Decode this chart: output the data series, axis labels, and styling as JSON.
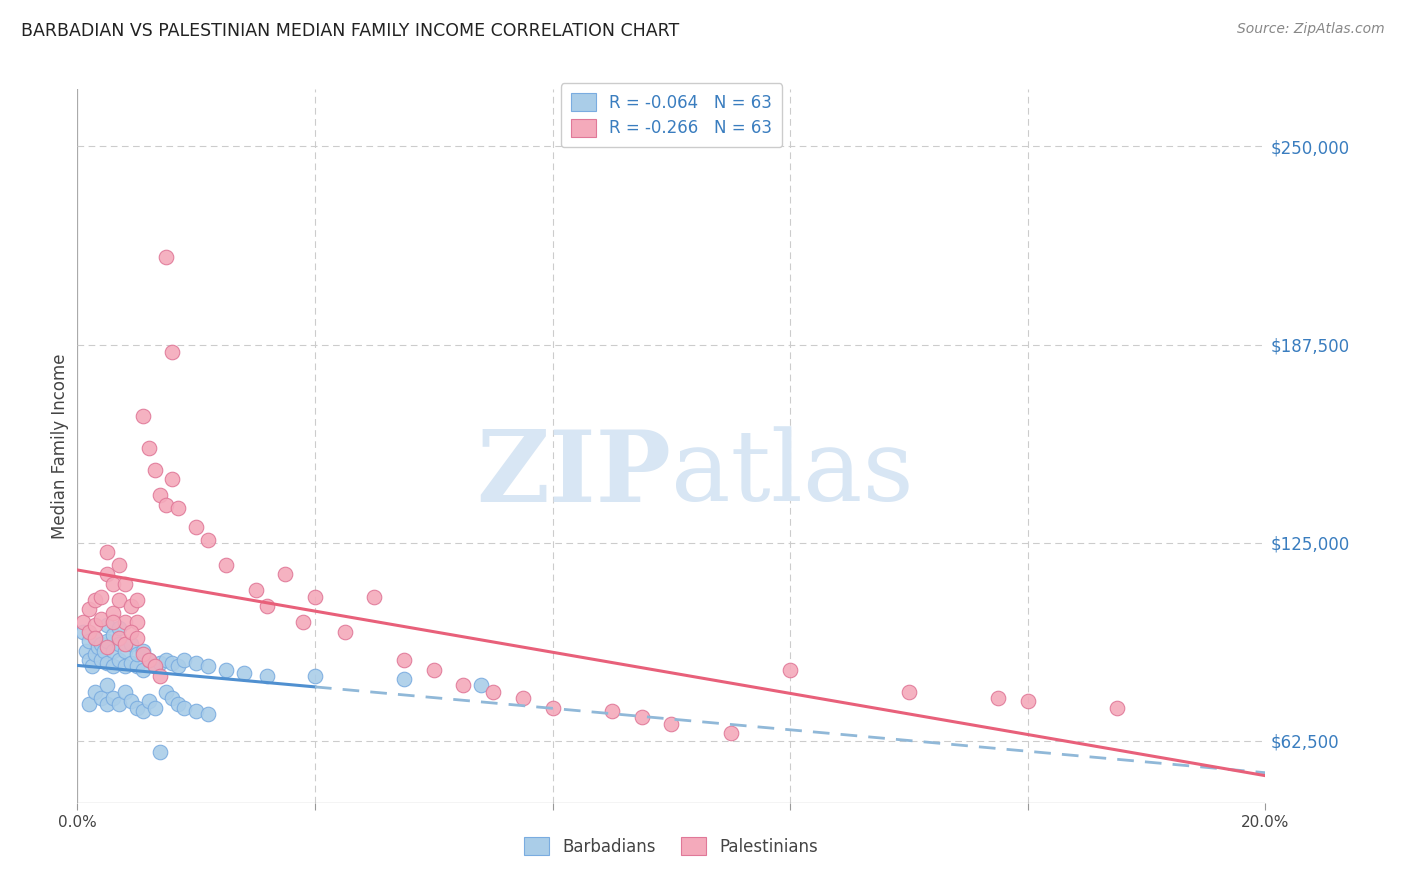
{
  "title": "BARBADIAN VS PALESTINIAN MEDIAN FAMILY INCOME CORRELATION CHART",
  "source": "Source: ZipAtlas.com",
  "ylabel": "Median Family Income",
  "y_ticks": [
    62500,
    125000,
    187500,
    250000
  ],
  "y_tick_labels": [
    "$62,500",
    "$125,000",
    "$187,500",
    "$250,000"
  ],
  "xlim": [
    0.0,
    0.2
  ],
  "ylim": [
    43000,
    268000
  ],
  "legend_entries": [
    {
      "label": "R = -0.064   N = 63",
      "color": "#aecbee"
    },
    {
      "label": "R = -0.266   N = 63",
      "color": "#f4aabb"
    }
  ],
  "legend_text_color": "#3a7dbf",
  "barbadian_color": "#aacde8",
  "palestinian_color": "#f4aabb",
  "barbadian_edge": "#7aace0",
  "palestinian_edge": "#e07898",
  "trend_barbadian_color": "#5090d0",
  "trend_palestinian_color": "#e8607a",
  "trend_dashed_color": "#90b8d8",
  "watermark_color": "#d8e6f4",
  "background_color": "#ffffff",
  "barbadian_x": [
    0.001,
    0.0015,
    0.002,
    0.002,
    0.0025,
    0.003,
    0.003,
    0.0035,
    0.004,
    0.004,
    0.0045,
    0.005,
    0.005,
    0.005,
    0.006,
    0.006,
    0.006,
    0.007,
    0.007,
    0.007,
    0.008,
    0.008,
    0.009,
    0.009,
    0.01,
    0.01,
    0.011,
    0.011,
    0.012,
    0.013,
    0.014,
    0.015,
    0.016,
    0.017,
    0.018,
    0.02,
    0.022,
    0.025,
    0.028,
    0.032,
    0.002,
    0.003,
    0.004,
    0.005,
    0.005,
    0.006,
    0.007,
    0.008,
    0.009,
    0.01,
    0.011,
    0.012,
    0.013,
    0.014,
    0.015,
    0.016,
    0.017,
    0.018,
    0.02,
    0.022,
    0.04,
    0.055,
    0.068
  ],
  "barbadian_y": [
    97000,
    91000,
    88000,
    94000,
    86000,
    90000,
    95000,
    92000,
    88000,
    93000,
    91000,
    87000,
    94000,
    99000,
    86000,
    91000,
    96000,
    88000,
    93000,
    98000,
    86000,
    91000,
    87000,
    93000,
    86000,
    90000,
    85000,
    91000,
    88000,
    86000,
    87000,
    88000,
    87000,
    86000,
    88000,
    87000,
    86000,
    85000,
    84000,
    83000,
    74000,
    78000,
    76000,
    74000,
    80000,
    76000,
    74000,
    78000,
    75000,
    73000,
    72000,
    75000,
    73000,
    59000,
    78000,
    76000,
    74000,
    73000,
    72000,
    71000,
    83000,
    82000,
    80000
  ],
  "palestinian_x": [
    0.001,
    0.002,
    0.002,
    0.003,
    0.003,
    0.004,
    0.004,
    0.005,
    0.005,
    0.006,
    0.006,
    0.007,
    0.007,
    0.008,
    0.008,
    0.009,
    0.01,
    0.01,
    0.011,
    0.012,
    0.013,
    0.014,
    0.015,
    0.016,
    0.017,
    0.02,
    0.022,
    0.025,
    0.03,
    0.032,
    0.035,
    0.038,
    0.04,
    0.045,
    0.05,
    0.055,
    0.06,
    0.065,
    0.07,
    0.075,
    0.08,
    0.09,
    0.095,
    0.1,
    0.11,
    0.12,
    0.14,
    0.155,
    0.16,
    0.175,
    0.003,
    0.005,
    0.006,
    0.007,
    0.008,
    0.009,
    0.01,
    0.011,
    0.012,
    0.013,
    0.014,
    0.015,
    0.016
  ],
  "palestinian_y": [
    100000,
    97000,
    104000,
    99000,
    107000,
    101000,
    108000,
    115000,
    122000,
    112000,
    103000,
    118000,
    107000,
    112000,
    100000,
    105000,
    100000,
    107000,
    165000,
    155000,
    148000,
    140000,
    137000,
    145000,
    136000,
    130000,
    126000,
    118000,
    110000,
    105000,
    115000,
    100000,
    108000,
    97000,
    108000,
    88000,
    85000,
    80000,
    78000,
    76000,
    73000,
    72000,
    70000,
    68000,
    65000,
    85000,
    78000,
    76000,
    75000,
    73000,
    95000,
    92000,
    100000,
    95000,
    93000,
    97000,
    95000,
    90000,
    88000,
    86000,
    83000,
    215000,
    185000
  ]
}
